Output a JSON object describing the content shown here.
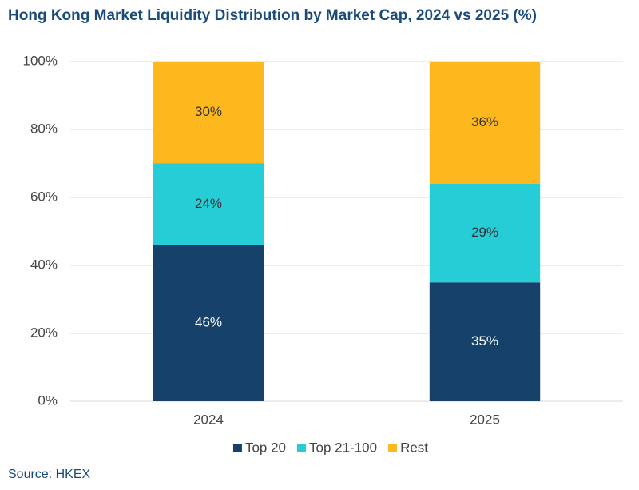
{
  "chart_data": {
    "type": "stacked-bar",
    "title": "Hong Kong Market Liquidity Distribution by Market Cap, 2024 vs 2025 (%)",
    "categories": [
      "2024",
      "2025"
    ],
    "series": [
      {
        "name": "Top 20",
        "color": "#15416b",
        "values": [
          46,
          35
        ],
        "value_labels": [
          "46%",
          "35%"
        ],
        "label_color": "#ffffff"
      },
      {
        "name": "Top 21-100",
        "color": "#26ccd6",
        "values": [
          24,
          29
        ],
        "value_labels": [
          "24%",
          "29%"
        ],
        "label_color": "#333333"
      },
      {
        "name": "Rest",
        "color": "#fdb81e",
        "values": [
          30,
          36
        ],
        "value_labels": [
          "30%",
          "36%"
        ],
        "label_color": "#333333"
      }
    ],
    "ylim": [
      0,
      100
    ],
    "yticks": [
      {
        "value": 0,
        "label": "0%"
      },
      {
        "value": 20,
        "label": "20%"
      },
      {
        "value": 40,
        "label": "40%"
      },
      {
        "value": 60,
        "label": "60%"
      },
      {
        "value": 80,
        "label": "80%"
      },
      {
        "value": 100,
        "label": "100%"
      }
    ],
    "grid": true,
    "legend": "bottom",
    "source": "Source: HKEX"
  }
}
